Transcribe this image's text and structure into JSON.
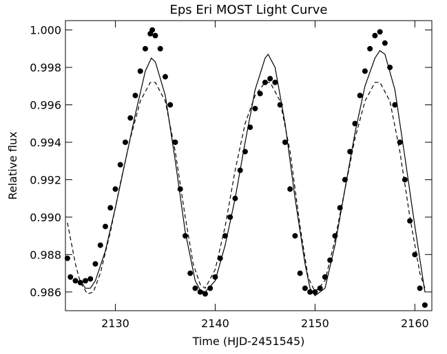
{
  "chart_data": {
    "type": "scatter",
    "title": "Eps Eri MOST Light Curve",
    "x_label": "Time (HJD-2451545)",
    "y_label": "Relative flux",
    "xlim": [
      2125,
      2161.7
    ],
    "ylim": [
      0.985,
      1.0005
    ],
    "xticks": [
      2130,
      2140,
      2150,
      2160
    ],
    "yticks": [
      0.986,
      0.988,
      {
        "value": 0.99,
        "label": "0.990"
      },
      0.992,
      0.994,
      0.996,
      0.998,
      {
        "value": 1,
        "label": "1.000"
      }
    ],
    "series": [
      {
        "style": "points",
        "color": "#000000",
        "x": [
          2125.2,
          2125.5,
          2126,
          2126.5,
          2127,
          2127.5,
          2128,
          2128.5,
          2129,
          2129.5,
          2130,
          2130.5,
          2131,
          2131.5,
          2132,
          2132.5,
          2133,
          2133.5,
          2133.7,
          2134,
          2134.5,
          2135,
          2135.5,
          2136,
          2136.5,
          2137,
          2137.5,
          2138,
          2138.5,
          2139,
          2139.5,
          2140,
          2140.5,
          2141,
          2141.5,
          2142,
          2142.5,
          2143,
          2143.5,
          2144,
          2144.5,
          2145,
          2145.5,
          2146,
          2146.5,
          2147,
          2147.5,
          2148,
          2148.5,
          2149,
          2149.5,
          2150,
          2150.5,
          2151,
          2151.5,
          2152,
          2152.5,
          2153,
          2153.5,
          2154,
          2154.5,
          2155,
          2155.5,
          2156,
          2156.5,
          2157,
          2157.5,
          2158,
          2158.5,
          2159,
          2159.5,
          2160,
          2160.5,
          2161
        ],
        "values": [
          0.9878,
          0.9868,
          0.9866,
          0.9865,
          0.9866,
          0.9867,
          0.9875,
          0.9885,
          0.9895,
          0.9905,
          0.9915,
          0.9928,
          0.994,
          0.9953,
          0.9965,
          0.9978,
          0.999,
          0.9998,
          1.0,
          0.9997,
          0.999,
          0.9975,
          0.996,
          0.994,
          0.9915,
          0.989,
          0.987,
          0.9862,
          0.986,
          0.9859,
          0.9862,
          0.9868,
          0.9878,
          0.989,
          0.99,
          0.991,
          0.9925,
          0.9935,
          0.9948,
          0.9958,
          0.9966,
          0.9972,
          0.9974,
          0.9972,
          0.996,
          0.994,
          0.9915,
          0.989,
          0.987,
          0.9862,
          0.986,
          0.986,
          0.9862,
          0.9868,
          0.9877,
          0.989,
          0.9905,
          0.992,
          0.9935,
          0.995,
          0.9965,
          0.9978,
          0.999,
          0.9997,
          0.9999,
          0.9993,
          0.998,
          0.996,
          0.994,
          0.992,
          0.9898,
          0.988,
          0.9862,
          0.9853
        ]
      },
      {
        "style": "solid",
        "color": "#000000",
        "x": [
          2126.5,
          2127,
          2127.5,
          2128,
          2129,
          2130,
          2131,
          2132,
          2133,
          2133.6,
          2134,
          2135,
          2136,
          2137,
          2138,
          2138.5,
          2139,
          2140,
          2141,
          2142,
          2143,
          2144,
          2145,
          2145.3,
          2146,
          2147,
          2148,
          2149,
          2149.5,
          2150,
          2151,
          2152,
          2153,
          2154,
          2155,
          2156,
          2156.5,
          2157,
          2158,
          2159,
          2160,
          2161
        ],
        "values": [
          0.9866,
          0.9862,
          0.9862,
          0.9866,
          0.9882,
          0.9905,
          0.993,
          0.9955,
          0.9978,
          0.9985,
          0.9983,
          0.9965,
          0.993,
          0.9892,
          0.9866,
          0.9861,
          0.986,
          0.9866,
          0.9885,
          0.991,
          0.994,
          0.9968,
          0.9985,
          0.9987,
          0.998,
          0.995,
          0.991,
          0.9875,
          0.9862,
          0.9858,
          0.9862,
          0.9885,
          0.9915,
          0.9945,
          0.997,
          0.9985,
          0.9989,
          0.9987,
          0.9968,
          0.9932,
          0.9895,
          0.986
        ]
      },
      {
        "style": "dashed",
        "color": "#000000",
        "x": [
          2125.2,
          2126,
          2126.5,
          2127.2,
          2127.8,
          2128.5,
          2129.5,
          2130.5,
          2131.5,
          2132.5,
          2133.5,
          2134,
          2135,
          2136,
          2137,
          2137.8,
          2138.5,
          2139,
          2140,
          2141,
          2142,
          2143,
          2144,
          2145,
          2145.5,
          2146.5,
          2147.5,
          2148.5,
          2149.3,
          2150,
          2151,
          2152,
          2153,
          2154,
          2155,
          2156,
          2156.5,
          2157.5,
          2158.5,
          2159.5,
          2160.5,
          2161
        ],
        "values": [
          0.9897,
          0.9875,
          0.9865,
          0.9859,
          0.986,
          0.987,
          0.9892,
          0.9918,
          0.9942,
          0.9962,
          0.9972,
          0.9972,
          0.9962,
          0.9935,
          0.99,
          0.9875,
          0.9864,
          0.9862,
          0.9872,
          0.9895,
          0.9925,
          0.995,
          0.9965,
          0.9972,
          0.9972,
          0.9962,
          0.9935,
          0.9895,
          0.9868,
          0.986,
          0.9866,
          0.9888,
          0.9915,
          0.9942,
          0.9962,
          0.9972,
          0.9972,
          0.9962,
          0.9935,
          0.99,
          0.987,
          0.9862
        ]
      }
    ]
  }
}
